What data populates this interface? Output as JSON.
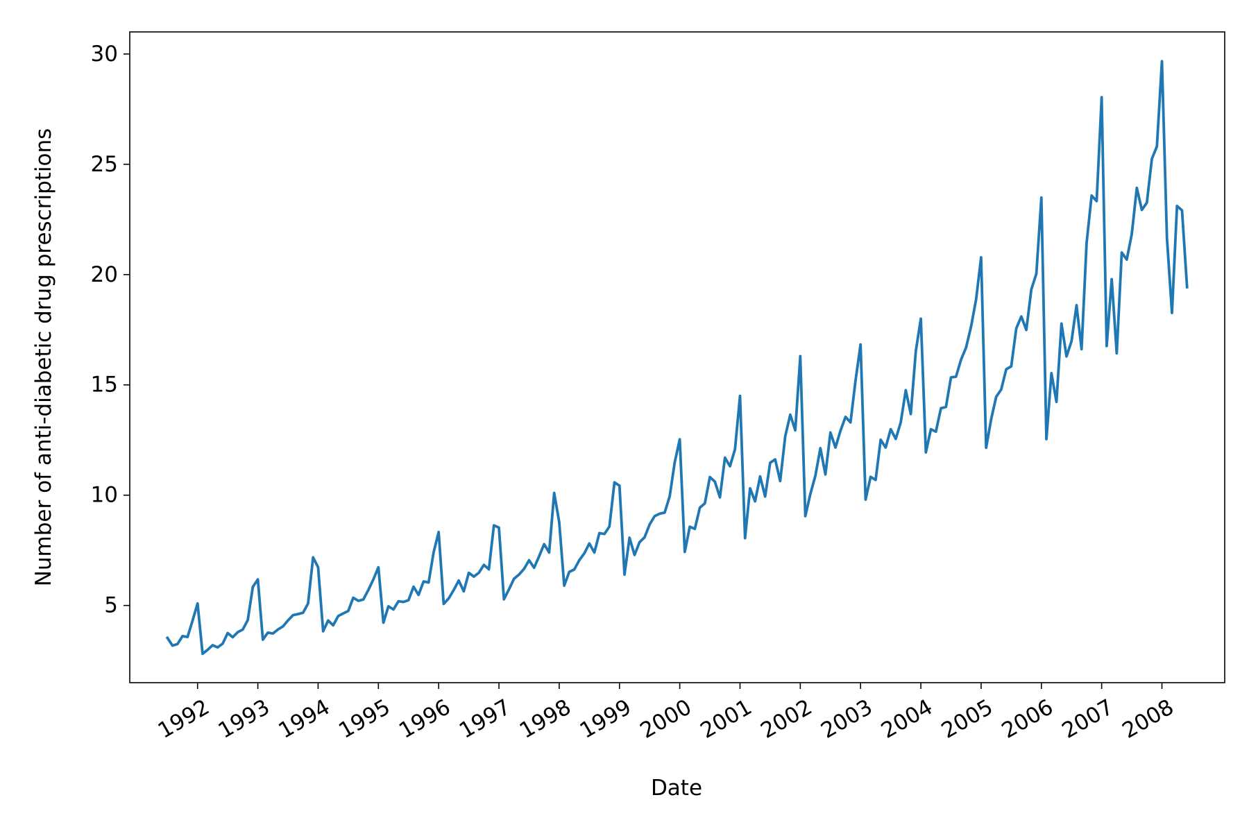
{
  "chart_data": {
    "type": "line",
    "xlabel": "Date",
    "ylabel": "Number of anti-diabetic drug prescriptions",
    "x_start": "1991-07",
    "x_end": "2008-06",
    "ylim": [
      1.5,
      31.0
    ],
    "x_ticks": [
      "1992",
      "1993",
      "1994",
      "1995",
      "1996",
      "1997",
      "1998",
      "1999",
      "2000",
      "2001",
      "2002",
      "2003",
      "2004",
      "2005",
      "2006",
      "2007",
      "2008"
    ],
    "y_ticks": [
      5,
      10,
      15,
      20,
      25,
      30
    ],
    "grid": false,
    "legend": "none",
    "line_color": "#1f77b4",
    "series": [
      {
        "x": [
          "1991-07",
          "1991-08",
          "1991-09",
          "1991-10",
          "1991-11",
          "1991-12",
          "1992-01",
          "1992-02",
          "1992-03",
          "1992-04",
          "1992-05",
          "1992-06",
          "1992-07",
          "1992-08",
          "1992-09",
          "1992-10",
          "1992-11",
          "1992-12",
          "1993-01",
          "1993-02",
          "1993-03",
          "1993-04",
          "1993-05",
          "1993-06",
          "1993-07",
          "1993-08",
          "1993-09",
          "1993-10",
          "1993-11",
          "1993-12",
          "1994-01",
          "1994-02",
          "1994-03",
          "1994-04",
          "1994-05",
          "1994-06",
          "1994-07",
          "1994-08",
          "1994-09",
          "1994-10",
          "1994-11",
          "1994-12",
          "1995-01",
          "1995-02",
          "1995-03",
          "1995-04",
          "1995-05",
          "1995-06",
          "1995-07",
          "1995-08",
          "1995-09",
          "1995-10",
          "1995-11",
          "1995-12",
          "1996-01",
          "1996-02",
          "1996-03",
          "1996-04",
          "1996-05",
          "1996-06",
          "1996-07",
          "1996-08",
          "1996-09",
          "1996-10",
          "1996-11",
          "1996-12",
          "1997-01",
          "1997-02",
          "1997-03",
          "1997-04",
          "1997-05",
          "1997-06",
          "1997-07",
          "1997-08",
          "1997-09",
          "1997-10",
          "1997-11",
          "1997-12",
          "1998-01",
          "1998-02",
          "1998-03",
          "1998-04",
          "1998-05",
          "1998-06",
          "1998-07",
          "1998-08",
          "1998-09",
          "1998-10",
          "1998-11",
          "1998-12",
          "1999-01",
          "1999-02",
          "1999-03",
          "1999-04",
          "1999-05",
          "1999-06",
          "1999-07",
          "1999-08",
          "1999-09",
          "1999-10",
          "1999-11",
          "1999-12",
          "2000-01",
          "2000-02",
          "2000-03",
          "2000-04",
          "2000-05",
          "2000-06",
          "2000-07",
          "2000-08",
          "2000-09",
          "2000-10",
          "2000-11",
          "2000-12",
          "2001-01",
          "2001-02",
          "2001-03",
          "2001-04",
          "2001-05",
          "2001-06",
          "2001-07",
          "2001-08",
          "2001-09",
          "2001-10",
          "2001-11",
          "2001-12",
          "2002-01",
          "2002-02",
          "2002-03",
          "2002-04",
          "2002-05",
          "2002-06",
          "2002-07",
          "2002-08",
          "2002-09",
          "2002-10",
          "2002-11",
          "2002-12",
          "2003-01",
          "2003-02",
          "2003-03",
          "2003-04",
          "2003-05",
          "2003-06",
          "2003-07",
          "2003-08",
          "2003-09",
          "2003-10",
          "2003-11",
          "2003-12",
          "2004-01",
          "2004-02",
          "2004-03",
          "2004-04",
          "2004-05",
          "2004-06",
          "2004-07",
          "2004-08",
          "2004-09",
          "2004-10",
          "2004-11",
          "2004-12",
          "2005-01",
          "2005-02",
          "2005-03",
          "2005-04",
          "2005-05",
          "2005-06",
          "2005-07",
          "2005-08",
          "2005-09",
          "2005-10",
          "2005-11",
          "2005-12",
          "2006-01",
          "2006-02",
          "2006-03",
          "2006-04",
          "2006-05",
          "2006-06",
          "2006-07",
          "2006-08",
          "2006-09",
          "2006-10",
          "2006-11",
          "2006-12",
          "2007-01",
          "2007-02",
          "2007-03",
          "2007-04",
          "2007-05",
          "2007-06",
          "2007-07",
          "2007-08",
          "2007-09",
          "2007-10",
          "2007-11",
          "2007-12",
          "2008-01",
          "2008-02",
          "2008-03",
          "2008-04",
          "2008-05",
          "2008-06"
        ],
        "values": [
          3.53,
          3.18,
          3.25,
          3.61,
          3.57,
          4.31,
          5.09,
          2.81,
          2.99,
          3.2,
          3.1,
          3.27,
          3.75,
          3.56,
          3.79,
          3.91,
          4.34,
          5.84,
          6.18,
          3.45,
          3.77,
          3.73,
          3.91,
          4.05,
          4.32,
          4.56,
          4.61,
          4.67,
          5.09,
          7.18,
          6.73,
          3.83,
          4.32,
          4.1,
          4.52,
          4.64,
          4.75,
          5.35,
          5.21,
          5.27,
          5.7,
          6.18,
          6.73,
          4.22,
          4.96,
          4.82,
          5.19,
          5.16,
          5.24,
          5.85,
          5.48,
          6.09,
          6.04,
          7.41,
          8.33,
          5.07,
          5.32,
          5.7,
          6.13,
          5.64,
          6.48,
          6.31,
          6.48,
          6.84,
          6.64,
          8.63,
          8.53,
          5.28,
          5.73,
          6.21,
          6.4,
          6.66,
          7.05,
          6.71,
          7.23,
          7.78,
          7.4,
          10.1,
          8.78,
          5.9,
          6.52,
          6.63,
          7.05,
          7.36,
          7.81,
          7.4,
          8.28,
          8.24,
          8.58,
          10.58,
          10.43,
          6.4,
          8.07,
          7.29,
          7.87,
          8.09,
          8.67,
          9.05,
          9.16,
          9.21,
          9.95,
          11.49,
          12.53,
          7.43,
          8.57,
          8.47,
          9.43,
          9.63,
          10.82,
          10.61,
          9.9,
          11.7,
          11.31,
          12.08,
          14.5,
          8.05,
          10.31,
          9.72,
          10.85,
          9.94,
          11.47,
          11.62,
          10.64,
          12.67,
          13.65,
          12.94,
          16.3,
          9.05,
          10.05,
          10.88,
          12.13,
          10.94,
          12.84,
          12.16,
          12.92,
          13.55,
          13.3,
          15.2,
          16.83,
          9.8,
          10.83,
          10.69,
          12.51,
          12.16,
          12.99,
          12.55,
          13.3,
          14.76,
          13.68,
          16.53,
          18.0,
          11.94,
          12.99,
          12.88,
          13.94,
          14.0,
          15.34,
          15.37,
          16.14,
          16.69,
          17.64,
          18.87,
          20.78,
          12.15,
          13.44,
          14.46,
          14.79,
          15.71,
          15.84,
          17.56,
          18.1,
          17.49,
          19.33,
          20.04,
          23.49,
          12.54,
          15.53,
          14.23,
          17.78,
          16.29,
          16.98,
          18.61,
          16.62,
          21.43,
          23.58,
          23.33,
          28.04,
          16.76,
          19.79,
          16.43,
          21.0,
          20.68,
          21.84,
          23.93,
          22.93,
          23.26,
          25.25,
          25.81,
          29.67,
          21.65,
          18.26,
          23.11,
          22.91,
          19.43
        ]
      }
    ]
  }
}
